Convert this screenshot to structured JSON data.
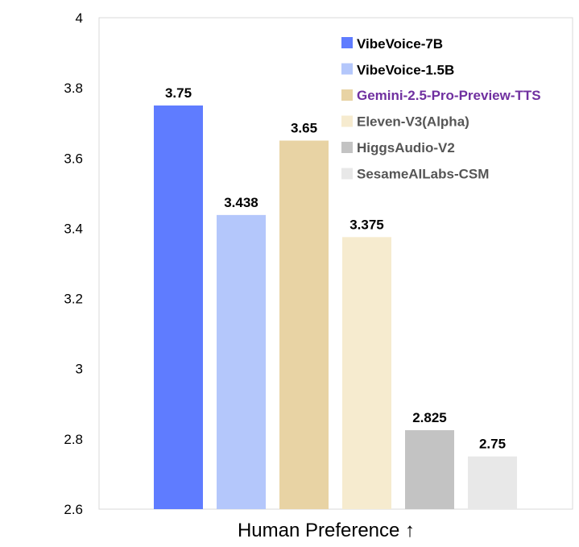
{
  "chart_data": {
    "type": "bar",
    "xlabel": "Human Preference ↑",
    "ylim": [
      2.6,
      4.0
    ],
    "yticks": [
      "2.6",
      "2.8",
      "3",
      "3.2",
      "3.4",
      "3.6",
      "3.8",
      "4"
    ],
    "legend_position": "top-right",
    "grid": false,
    "series": [
      {
        "name": "VibeVoice-7B",
        "value": 3.75,
        "label": "3.75",
        "color": "#5f7cff",
        "legend_text_color": "#000000"
      },
      {
        "name": "VibeVoice-1.5B",
        "value": 3.438,
        "label": "3.438",
        "color": "#b4c7fb",
        "legend_text_color": "#000000"
      },
      {
        "name": "Gemini-2.5-Pro-Preview-TTS",
        "value": 3.65,
        "label": "3.65",
        "color": "#e8d3a4",
        "legend_text_color": "#7030a0"
      },
      {
        "name": "Eleven-V3(Alpha)",
        "value": 3.375,
        "label": "3.375",
        "color": "#f6ebcf",
        "legend_text_color": "#555555"
      },
      {
        "name": "HiggsAudio-V2",
        "value": 2.825,
        "label": "2.825",
        "color": "#c3c3c3",
        "legend_text_color": "#555555"
      },
      {
        "name": "SesameAILabs-CSM",
        "value": 2.75,
        "label": "2.75",
        "color": "#e8e8e8",
        "legend_text_color": "#555555"
      }
    ]
  }
}
